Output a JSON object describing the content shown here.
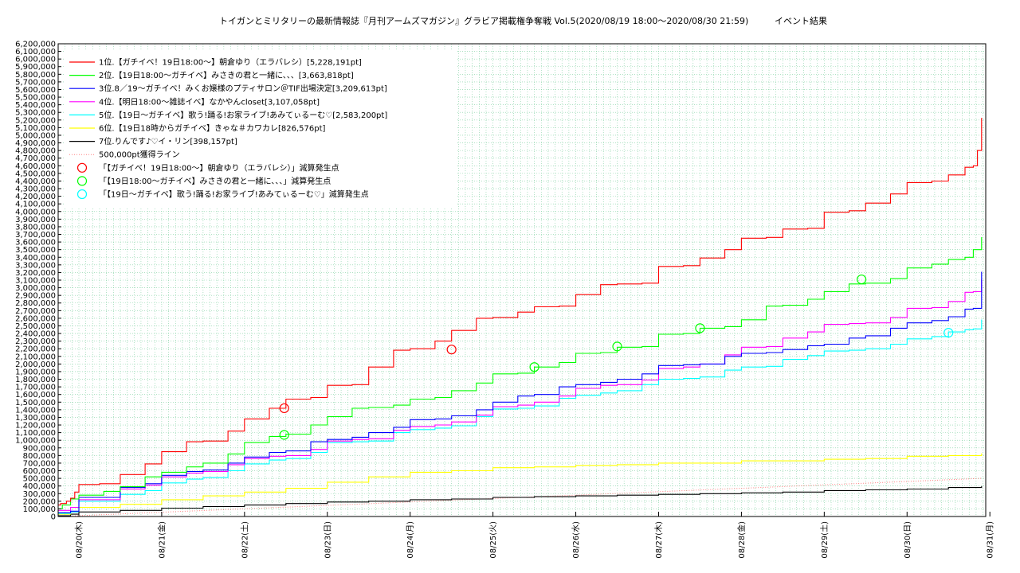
{
  "title": "トイガンとミリタリーの最新情報誌『月刊アームズマガジン』グラビア掲載権争奪戦 Vol.5(2020/08/19 18:00～2020/08/30 21:59)",
  "subtitle": "イベント結果",
  "chart_data": {
    "type": "line",
    "title": "トイガンとミリタリーの最新情報誌『月刊アームズマガジン』グラビア掲載権争奪戦 Vol.5(2020/08/19 18:00～2020/08/30 21:59)",
    "subtitle": "イベント結果",
    "xlabel": "",
    "ylabel": "",
    "x_ticks": [
      "08/20(木)",
      "08/21(金)",
      "08/22(土)",
      "08/23(日)",
      "08/24(月)",
      "08/25(火)",
      "08/26(水)",
      "08/27(木)",
      "08/28(金)",
      "08/29(土)",
      "08/30(日)",
      "08/31(月)"
    ],
    "x_units": "days since 2020/08/20 00:00",
    "xlim": [
      -0.25,
      10.95
    ],
    "ylim": [
      0,
      6200000
    ],
    "ytick_step": 100000,
    "grid": true,
    "legend_position": "top-left",
    "series": [
      {
        "name": "1位.【ガチイベ！19日18:00〜】朝倉ゆり（エラバレシ）[5,228,191pt]",
        "color": "#ff0000",
        "x": [
          -0.25,
          -0.22,
          -0.15,
          -0.1,
          -0.05,
          0.0,
          0.25,
          0.5,
          0.8,
          1.0,
          1.3,
          1.5,
          1.8,
          2.0,
          2.3,
          2.5,
          2.8,
          3.0,
          3.3,
          3.5,
          3.8,
          4.0,
          4.3,
          4.5,
          4.8,
          5.0,
          5.3,
          5.5,
          5.8,
          6.0,
          6.3,
          6.5,
          6.8,
          7.0,
          7.3,
          7.5,
          7.8,
          8.0,
          8.3,
          8.5,
          8.8,
          9.0,
          9.3,
          9.5,
          9.8,
          10.0,
          10.3,
          10.5,
          10.7,
          10.8,
          10.85,
          10.9
        ],
        "y": [
          150000,
          170000,
          200000,
          240000,
          320000,
          420000,
          430000,
          550000,
          690000,
          850000,
          980000,
          990000,
          1120000,
          1280000,
          1420000,
          1540000,
          1560000,
          1720000,
          1730000,
          1960000,
          2180000,
          2200000,
          2300000,
          2440000,
          2600000,
          2610000,
          2680000,
          2750000,
          2760000,
          2910000,
          3040000,
          3050000,
          3060000,
          3280000,
          3290000,
          3390000,
          3500000,
          3650000,
          3660000,
          3770000,
          3780000,
          3990000,
          4010000,
          4110000,
          4230000,
          4380000,
          4400000,
          4480000,
          4580000,
          4600000,
          4800000,
          5228191
        ]
      },
      {
        "name": "2位.【19日18:00〜ガチイベ】みさきの君と一緒に、、、[3,663,818pt]",
        "color": "#00ff00",
        "x": [
          -0.25,
          -0.2,
          -0.1,
          0.0,
          0.3,
          0.5,
          0.8,
          1.0,
          1.3,
          1.5,
          1.8,
          2.0,
          2.3,
          2.5,
          2.8,
          3.0,
          3.3,
          3.5,
          3.8,
          4.0,
          4.3,
          4.5,
          4.8,
          5.0,
          5.3,
          5.5,
          5.8,
          6.0,
          6.3,
          6.5,
          6.8,
          7.0,
          7.3,
          7.5,
          7.8,
          8.0,
          8.3,
          8.5,
          8.8,
          9.0,
          9.3,
          9.5,
          9.8,
          10.0,
          10.3,
          10.5,
          10.7,
          10.8,
          10.9
        ],
        "y": [
          100000,
          150000,
          230000,
          280000,
          330000,
          390000,
          520000,
          580000,
          650000,
          700000,
          820000,
          970000,
          1050000,
          1080000,
          1200000,
          1310000,
          1420000,
          1430000,
          1460000,
          1540000,
          1560000,
          1650000,
          1750000,
          1870000,
          1880000,
          1960000,
          2020000,
          2140000,
          2150000,
          2220000,
          2230000,
          2390000,
          2400000,
          2470000,
          2490000,
          2580000,
          2760000,
          2770000,
          2850000,
          2950000,
          3050000,
          3060000,
          3120000,
          3260000,
          3310000,
          3370000,
          3400000,
          3500000,
          3663818
        ]
      },
      {
        "name": "3位.8／19〜ガチイベ！みくお嬢様のプティサロン＠TIF出場決定[3,209,613pt]",
        "color": "#0000ff",
        "x": [
          -0.25,
          -0.1,
          0.0,
          0.5,
          0.8,
          1.0,
          1.3,
          1.5,
          1.8,
          2.0,
          2.3,
          2.5,
          2.8,
          3.0,
          3.3,
          3.5,
          3.8,
          4.0,
          4.3,
          4.5,
          4.8,
          5.0,
          5.3,
          5.5,
          5.8,
          6.0,
          6.3,
          6.5,
          6.8,
          7.0,
          7.3,
          7.5,
          7.8,
          8.0,
          8.3,
          8.5,
          8.8,
          9.0,
          9.3,
          9.5,
          9.8,
          10.0,
          10.3,
          10.5,
          10.7,
          10.8,
          10.9
        ],
        "y": [
          50000,
          70000,
          250000,
          380000,
          430000,
          540000,
          590000,
          610000,
          700000,
          780000,
          840000,
          860000,
          980000,
          1010000,
          1040000,
          1100000,
          1170000,
          1270000,
          1280000,
          1320000,
          1400000,
          1500000,
          1580000,
          1600000,
          1700000,
          1730000,
          1760000,
          1800000,
          1870000,
          1980000,
          1990000,
          2000000,
          2100000,
          2140000,
          2150000,
          2190000,
          2240000,
          2260000,
          2340000,
          2370000,
          2470000,
          2540000,
          2570000,
          2620000,
          2720000,
          2730000,
          3209613
        ]
      },
      {
        "name": "4位.【明日18:00〜雑誌イベ】なかやんcloset[3,107,058pt]",
        "color": "#ff00ff",
        "x": [
          -0.25,
          -0.1,
          0.0,
          0.5,
          0.8,
          1.0,
          1.3,
          1.5,
          1.8,
          2.0,
          2.3,
          2.5,
          2.8,
          3.0,
          3.3,
          3.5,
          3.8,
          4.0,
          4.3,
          4.5,
          4.8,
          5.0,
          5.3,
          5.5,
          5.8,
          6.0,
          6.3,
          6.5,
          6.8,
          7.0,
          7.3,
          7.5,
          7.8,
          8.0,
          8.3,
          8.5,
          8.8,
          9.0,
          9.3,
          9.5,
          9.8,
          10.0,
          10.3,
          10.5,
          10.7,
          10.8,
          10.9
        ],
        "y": [
          80000,
          120000,
          220000,
          360000,
          410000,
          520000,
          570000,
          590000,
          680000,
          760000,
          790000,
          800000,
          880000,
          990000,
          1010000,
          1020000,
          1130000,
          1180000,
          1200000,
          1240000,
          1330000,
          1440000,
          1460000,
          1500000,
          1580000,
          1680000,
          1720000,
          1730000,
          1790000,
          1940000,
          1960000,
          2000000,
          2120000,
          2220000,
          2230000,
          2340000,
          2420000,
          2520000,
          2530000,
          2540000,
          2610000,
          2730000,
          2740000,
          2820000,
          2940000,
          2950000,
          3107058
        ]
      },
      {
        "name": "5位.【19日〜ガチイベ】歌う!踊る!お家ライブ!あみてぃるーむ♡[2,583,200pt]",
        "color": "#00ffff",
        "x": [
          -0.25,
          -0.1,
          0.0,
          0.5,
          0.8,
          1.0,
          1.3,
          1.5,
          1.8,
          2.0,
          2.3,
          2.5,
          2.8,
          3.0,
          3.3,
          3.5,
          3.8,
          4.0,
          4.3,
          4.5,
          4.8,
          5.0,
          5.3,
          5.5,
          5.8,
          6.0,
          6.3,
          6.5,
          6.8,
          7.0,
          7.3,
          7.5,
          7.8,
          8.0,
          8.3,
          8.5,
          8.8,
          9.0,
          9.3,
          9.5,
          9.8,
          10.0,
          10.3,
          10.5,
          10.7,
          10.8,
          10.9
        ],
        "y": [
          40000,
          60000,
          200000,
          290000,
          340000,
          440000,
          490000,
          510000,
          600000,
          690000,
          740000,
          760000,
          840000,
          970000,
          980000,
          990000,
          1100000,
          1140000,
          1160000,
          1190000,
          1310000,
          1410000,
          1420000,
          1450000,
          1550000,
          1590000,
          1620000,
          1650000,
          1730000,
          1800000,
          1810000,
          1830000,
          1920000,
          1960000,
          1970000,
          2060000,
          2110000,
          2170000,
          2180000,
          2200000,
          2260000,
          2330000,
          2360000,
          2420000,
          2450000,
          2460000,
          2583200
        ]
      },
      {
        "name": "6位.【19日18時からガチイベ】きゃな＃カワカレ[826,576pt]",
        "color": "#ffff00",
        "x": [
          -0.25,
          -0.1,
          0.0,
          0.5,
          1.0,
          1.5,
          2.0,
          2.5,
          3.0,
          3.5,
          4.0,
          4.5,
          5.0,
          5.5,
          6.0,
          6.5,
          7.0,
          7.5,
          8.0,
          8.5,
          9.0,
          9.5,
          10.0,
          10.5,
          10.9
        ],
        "y": [
          30000,
          60000,
          120000,
          160000,
          220000,
          270000,
          320000,
          370000,
          450000,
          520000,
          580000,
          600000,
          640000,
          650000,
          670000,
          680000,
          700000,
          700000,
          730000,
          730000,
          750000,
          760000,
          790000,
          800000,
          826576
        ]
      },
      {
        "name": "7位.りんです♪♡イ・リン[398,157pt]",
        "color": "#000000",
        "x": [
          -0.25,
          -0.1,
          0.0,
          0.5,
          1.0,
          1.5,
          2.0,
          2.5,
          3.0,
          3.5,
          4.0,
          4.5,
          5.0,
          5.5,
          6.0,
          6.5,
          7.0,
          7.5,
          8.0,
          8.5,
          9.0,
          9.5,
          10.0,
          10.5,
          10.9
        ],
        "y": [
          10000,
          30000,
          60000,
          80000,
          110000,
          130000,
          150000,
          170000,
          190000,
          200000,
          220000,
          230000,
          250000,
          260000,
          270000,
          280000,
          290000,
          300000,
          310000,
          320000,
          340000,
          350000,
          360000,
          380000,
          398157
        ]
      }
    ],
    "reference_line": {
      "name": "500,000pt獲得ライン",
      "color": "#ff8080",
      "x": [
        -0.25,
        10.9
      ],
      "y": [
        0,
        500000
      ]
    },
    "markers": [
      {
        "name": "「【ガチイベ！19日18:00〜】朝倉ゆり（エラバレシ）」減算発生点",
        "color": "#ff0000",
        "points": [
          [
            2.48,
            1420000
          ],
          [
            4.5,
            2190000
          ]
        ]
      },
      {
        "name": "「【19日18:00〜ガチイベ】みさきの君と一緒に、、、」減算発生点",
        "color": "#00ff00",
        "points": [
          [
            2.48,
            1070000
          ],
          [
            5.5,
            1960000
          ],
          [
            6.5,
            2230000
          ],
          [
            7.5,
            2470000
          ],
          [
            9.45,
            3110000
          ]
        ]
      },
      {
        "name": "「【19日〜ガチイベ】歌う!踊る!お家ライブ!あみてぃるーむ♡」減算発生点",
        "color": "#00ffff",
        "points": [
          [
            10.5,
            2410000
          ]
        ]
      }
    ]
  }
}
